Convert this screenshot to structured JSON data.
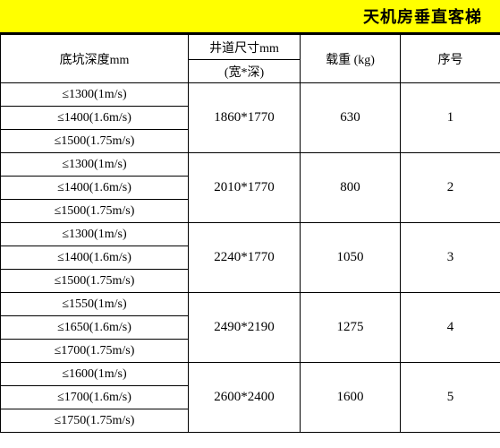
{
  "title": "天机房垂直客梯",
  "columns": {
    "depth": "底坑深度mm",
    "well": "井道尺寸mm",
    "well_sub": "(宽*深)",
    "load": "载重 (kg)",
    "no": "序号"
  },
  "rows": [
    {
      "no": "1",
      "load": "630",
      "well": "1860*1770",
      "depths": [
        "≤1300(1m/s)",
        "≤1400(1.6m/s)",
        "≤1500(1.75m/s)"
      ]
    },
    {
      "no": "2",
      "load": "800",
      "well": "2010*1770",
      "depths": [
        "≤1300(1m/s)",
        "≤1400(1.6m/s)",
        "≤1500(1.75m/s)"
      ]
    },
    {
      "no": "3",
      "load": "1050",
      "well": "2240*1770",
      "depths": [
        "≤1300(1m/s)",
        "≤1400(1.6m/s)",
        "≤1500(1.75m/s)"
      ]
    },
    {
      "no": "4",
      "load": "1275",
      "well": "2490*2190",
      "depths": [
        "≤1550(1m/s)",
        "≤1650(1.6m/s)",
        "≤1700(1.75m/s)"
      ]
    },
    {
      "no": "5",
      "load": "1600",
      "well": "2600*2400",
      "depths": [
        "≤1600(1m/s)",
        "≤1700(1.6m/s)",
        "≤1750(1.75m/s)"
      ]
    }
  ],
  "styling": {
    "header_bg": "#ffff00",
    "border_color": "#000000",
    "body_bg": "#ffffff",
    "font_family": "SimSun",
    "title_fontsize": 18,
    "cell_fontsize": 14
  }
}
